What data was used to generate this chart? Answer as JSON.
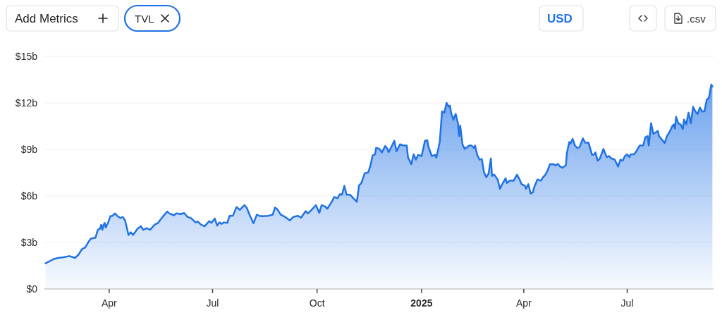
{
  "chart_data": {
    "type": "area",
    "x": [
      "2024-02-05",
      "2024-02-12",
      "2024-02-16",
      "2024-02-20",
      "2024-02-26",
      "2024-03-02",
      "2024-03-05",
      "2024-03-08",
      "2024-03-11",
      "2024-03-14",
      "2024-03-16",
      "2024-03-20",
      "2024-03-22",
      "2024-03-24",
      "2024-03-25",
      "2024-03-26",
      "2024-03-27",
      "2024-03-28",
      "2024-03-29",
      "2024-03-31",
      "2024-04-02",
      "2024-04-04",
      "2024-04-06",
      "2024-04-08",
      "2024-04-11",
      "2024-04-13",
      "2024-04-15",
      "2024-04-17",
      "2024-04-18",
      "2024-04-20",
      "2024-04-22",
      "2024-04-26",
      "2024-04-29",
      "2024-05-01",
      "2024-05-04",
      "2024-05-07",
      "2024-05-11",
      "2024-05-14",
      "2024-05-18",
      "2024-05-22",
      "2024-05-24",
      "2024-05-28",
      "2024-05-30",
      "2024-06-03",
      "2024-06-06",
      "2024-06-09",
      "2024-06-12",
      "2024-06-16",
      "2024-06-18",
      "2024-06-21",
      "2024-06-24",
      "2024-06-28",
      "2024-06-30",
      "2024-07-03",
      "2024-07-05",
      "2024-07-07",
      "2024-07-09",
      "2024-07-11",
      "2024-07-14",
      "2024-07-16",
      "2024-07-19",
      "2024-07-22",
      "2024-07-25",
      "2024-07-29",
      "2024-07-31",
      "2024-08-03",
      "2024-08-06",
      "2024-08-09",
      "2024-08-11",
      "2024-08-14",
      "2024-08-19",
      "2024-08-23",
      "2024-08-25",
      "2024-08-27",
      "2024-08-30",
      "2024-09-03",
      "2024-09-07",
      "2024-09-10",
      "2024-09-14",
      "2024-09-17",
      "2024-09-21",
      "2024-09-23",
      "2024-09-27",
      "2024-09-30",
      "2024-10-03",
      "2024-10-05",
      "2024-10-08",
      "2024-10-10",
      "2024-10-14",
      "2024-10-16",
      "2024-10-19",
      "2024-10-21",
      "2024-10-23",
      "2024-10-25",
      "2024-10-27",
      "2024-10-30",
      "2024-11-02",
      "2024-11-05",
      "2024-11-07",
      "2024-11-09",
      "2024-11-12",
      "2024-11-15",
      "2024-11-17",
      "2024-11-19",
      "2024-11-21",
      "2024-11-22",
      "2024-11-25",
      "2024-11-27",
      "2024-11-30",
      "2024-12-02",
      "2024-12-03",
      "2024-12-05",
      "2024-12-08",
      "2024-12-10",
      "2024-12-13",
      "2024-12-16",
      "2024-12-19",
      "2024-12-20",
      "2024-12-23",
      "2024-12-25",
      "2024-12-27",
      "2024-12-29",
      "2025-01-01",
      "2025-01-04",
      "2025-01-06",
      "2025-01-07",
      "2025-01-10",
      "2025-01-13",
      "2025-01-14",
      "2025-01-17",
      "2025-01-19",
      "2025-01-21",
      "2025-01-23",
      "2025-01-25",
      "2025-01-26",
      "2025-01-27",
      "2025-01-29",
      "2025-01-31",
      "2025-02-02",
      "2025-02-03",
      "2025-02-04",
      "2025-02-06",
      "2025-02-08",
      "2025-02-12",
      "2025-02-14",
      "2025-02-16",
      "2025-02-17",
      "2025-02-19",
      "2025-02-21",
      "2025-02-23",
      "2025-02-25",
      "2025-02-27",
      "2025-03-01",
      "2025-03-03",
      "2025-03-04",
      "2025-03-06",
      "2025-03-09",
      "2025-03-11",
      "2025-03-13",
      "2025-03-16",
      "2025-03-17",
      "2025-03-20",
      "2025-03-23",
      "2025-03-26",
      "2025-03-28",
      "2025-03-30",
      "2025-04-02",
      "2025-04-03",
      "2025-04-05",
      "2025-04-07",
      "2025-04-09",
      "2025-04-10",
      "2025-04-13",
      "2025-04-16",
      "2025-04-18",
      "2025-04-20",
      "2025-04-22",
      "2025-04-24",
      "2025-04-27",
      "2025-04-29",
      "2025-05-01",
      "2025-05-03",
      "2025-05-05",
      "2025-05-08",
      "2025-05-09",
      "2025-05-11",
      "2025-05-12",
      "2025-05-14",
      "2025-05-16",
      "2025-05-18",
      "2025-05-20",
      "2025-05-23",
      "2025-05-25",
      "2025-05-28",
      "2025-05-31",
      "2025-06-02",
      "2025-06-03",
      "2025-06-05",
      "2025-06-07",
      "2025-06-10",
      "2025-06-13",
      "2025-06-15",
      "2025-06-17",
      "2025-06-20",
      "2025-06-23",
      "2025-06-25",
      "2025-06-27",
      "2025-06-29",
      "2025-07-01",
      "2025-07-03",
      "2025-07-04",
      "2025-07-07",
      "2025-07-09",
      "2025-07-12",
      "2025-07-15",
      "2025-07-17",
      "2025-07-19",
      "2025-07-20",
      "2025-07-22",
      "2025-07-24",
      "2025-07-26",
      "2025-07-28",
      "2025-07-29",
      "2025-08-01",
      "2025-08-03",
      "2025-08-05",
      "2025-08-07",
      "2025-08-10",
      "2025-08-11",
      "2025-08-12",
      "2025-08-13",
      "2025-08-15",
      "2025-08-17",
      "2025-08-19",
      "2025-08-20",
      "2025-08-22",
      "2025-08-24",
      "2025-08-26",
      "2025-08-28",
      "2025-08-30",
      "2025-09-01",
      "2025-09-03",
      "2025-09-05",
      "2025-09-07",
      "2025-09-09",
      "2025-09-11",
      "2025-09-13",
      "2025-09-14"
    ],
    "series": [
      {
        "color": "#2172e5",
        "values": [
          1.65,
          1.92,
          2.0,
          2.03,
          2.12,
          2.0,
          2.21,
          2.56,
          2.68,
          3.06,
          3.25,
          3.31,
          3.81,
          3.89,
          4.14,
          3.81,
          4.11,
          4.26,
          3.96,
          4.26,
          4.69,
          4.72,
          4.87,
          4.72,
          4.57,
          4.64,
          4.42,
          3.81,
          3.48,
          3.66,
          3.48,
          3.89,
          4.04,
          3.81,
          3.92,
          3.81,
          4.14,
          4.26,
          4.64,
          4.99,
          4.87,
          4.75,
          4.87,
          4.83,
          4.9,
          4.64,
          4.57,
          4.29,
          4.34,
          4.14,
          4.04,
          4.37,
          4.26,
          4.54,
          4.08,
          4.29,
          4.19,
          4.29,
          4.26,
          4.72,
          4.72,
          5.28,
          5.1,
          5.4,
          5.25,
          4.72,
          4.24,
          4.79,
          4.72,
          4.69,
          4.72,
          4.79,
          5.25,
          5.14,
          4.79,
          4.64,
          4.42,
          4.64,
          4.72,
          4.6,
          5.02,
          4.87,
          5.17,
          5.4,
          4.9,
          5.4,
          5.32,
          5.17,
          5.62,
          5.93,
          5.85,
          6.11,
          6.08,
          6.65,
          6.08,
          6.08,
          5.85,
          5.62,
          6.68,
          6.83,
          7.47,
          7.51,
          7.97,
          8.62,
          8.68,
          9.1,
          9.03,
          8.8,
          9.22,
          9.03,
          8.83,
          9.1,
          9.56,
          8.88,
          9.33,
          9.25,
          9.25,
          8.5,
          8.05,
          8.68,
          8.34,
          8.65,
          8.57,
          9.56,
          9.59,
          9.18,
          8.57,
          8.65,
          8.47,
          9.48,
          11.45,
          11.37,
          12.0,
          11.75,
          11.82,
          11.37,
          10.92,
          11.29,
          10.69,
          9.86,
          10.54,
          9.33,
          9.03,
          9.25,
          9.25,
          9.1,
          9.25,
          8.65,
          8.34,
          8.38,
          7.51,
          7.21,
          7.44,
          8.42,
          7.29,
          7.37,
          7.06,
          6.46,
          6.76,
          7.14,
          6.83,
          7.0,
          6.98,
          7.37,
          7.1,
          6.76,
          6.65,
          6.46,
          6.76,
          6.15,
          6.23,
          6.53,
          7.06,
          6.98,
          7.21,
          7.37,
          7.66,
          8.05,
          8.05,
          7.97,
          8.07,
          7.89,
          7.82,
          7.97,
          8.8,
          9.48,
          9.37,
          9.68,
          9.25,
          9.1,
          9.13,
          9.71,
          9.43,
          9.43,
          8.65,
          8.68,
          8.8,
          8.27,
          8.42,
          9.03,
          8.5,
          8.57,
          8.42,
          8.34,
          7.89,
          8.34,
          8.27,
          8.57,
          8.68,
          8.5,
          8.68,
          8.68,
          8.88,
          9.25,
          9.25,
          9.78,
          9.86,
          9.25,
          10.69,
          10.01,
          10.09,
          10.19,
          9.86,
          9.59,
          9.41,
          9.86,
          10.09,
          10.54,
          10.61,
          10.34,
          11.1,
          10.69,
          10.61,
          10.31,
          10.92,
          10.61,
          11.37,
          10.69,
          11.75,
          11.45,
          11.29,
          11.7,
          11.45,
          11.45,
          12.2,
          12.35,
          13.18,
          13.06
        ]
      }
    ],
    "xlim": [
      "2024-02-04",
      "2025-09-15"
    ],
    "ylim": [
      0,
      15
    ],
    "xticks": [
      {
        "value": "2024-04-01",
        "label": "Apr"
      },
      {
        "value": "2024-07-01",
        "label": "Jul"
      },
      {
        "value": "2024-10-01",
        "label": "Oct"
      },
      {
        "value": "2025-01-01",
        "label": "2025"
      },
      {
        "value": "2025-04-01",
        "label": "Apr"
      },
      {
        "value": "2025-07-01",
        "label": "Jul"
      }
    ],
    "yticks": [
      {
        "value": 0,
        "label": "$0"
      },
      {
        "value": 3,
        "label": "$3b"
      },
      {
        "value": 6,
        "label": "$6b"
      },
      {
        "value": 9,
        "label": "$9b"
      },
      {
        "value": 12,
        "label": "$12b"
      },
      {
        "value": 15,
        "label": "$15b"
      }
    ],
    "grid": "y",
    "annotations": [
      "Add Metrics",
      "TVL",
      "USD",
      ".csv"
    ]
  }
}
